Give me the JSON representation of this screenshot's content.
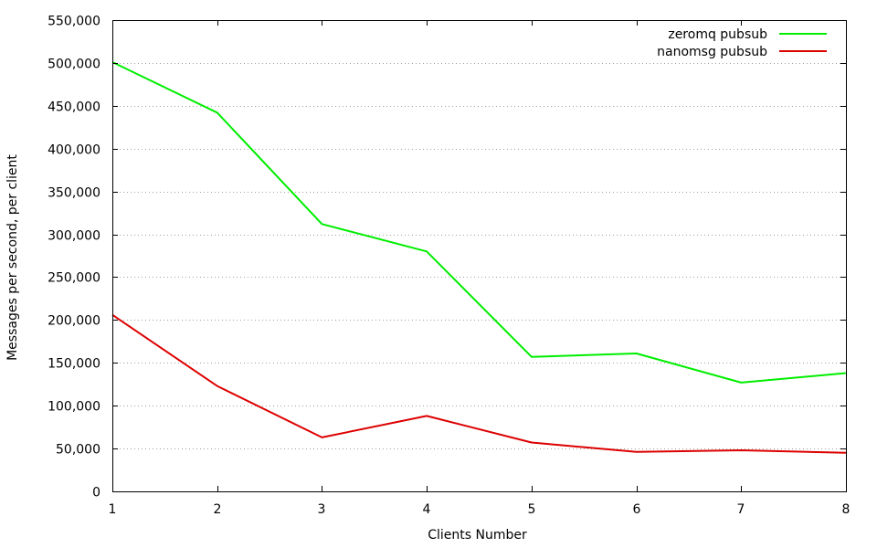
{
  "chart_data": {
    "type": "line",
    "xlabel": "Clients Number",
    "ylabel": "Messages per second, per client",
    "x": [
      1,
      2,
      3,
      4,
      5,
      6,
      7,
      8
    ],
    "xlim": [
      1,
      8
    ],
    "ylim": [
      0,
      550000
    ],
    "xticks": [
      {
        "value": 1,
        "label": "1"
      },
      {
        "value": 2,
        "label": "2"
      },
      {
        "value": 3,
        "label": "3"
      },
      {
        "value": 4,
        "label": "4"
      },
      {
        "value": 5,
        "label": "5"
      },
      {
        "value": 6,
        "label": "6"
      },
      {
        "value": 7,
        "label": "7"
      },
      {
        "value": 8,
        "label": "8"
      }
    ],
    "yticks": [
      {
        "value": 0,
        "label": "0"
      },
      {
        "value": 50000,
        "label": "50,000"
      },
      {
        "value": 100000,
        "label": "100,000"
      },
      {
        "value": 150000,
        "label": "150,000"
      },
      {
        "value": 200000,
        "label": "200,000"
      },
      {
        "value": 250000,
        "label": "250,000"
      },
      {
        "value": 300000,
        "label": "300,000"
      },
      {
        "value": 350000,
        "label": "350,000"
      },
      {
        "value": 400000,
        "label": "400,000"
      },
      {
        "value": 450000,
        "label": "450,000"
      },
      {
        "value": 500000,
        "label": "500,000"
      },
      {
        "value": 550000,
        "label": "550,000"
      }
    ],
    "grid": "horizontal-dotted",
    "legend_position": "top-right",
    "series": [
      {
        "name": "zeromq pubsub",
        "color": "#00ee00",
        "values": [
          501000,
          442000,
          312000,
          280000,
          157000,
          161000,
          127000,
          138000
        ]
      },
      {
        "name": "nanomsg pubsub",
        "color": "#dd0000",
        "values": [
          206000,
          123000,
          63000,
          88000,
          57000,
          46000,
          48000,
          45000
        ]
      }
    ]
  }
}
